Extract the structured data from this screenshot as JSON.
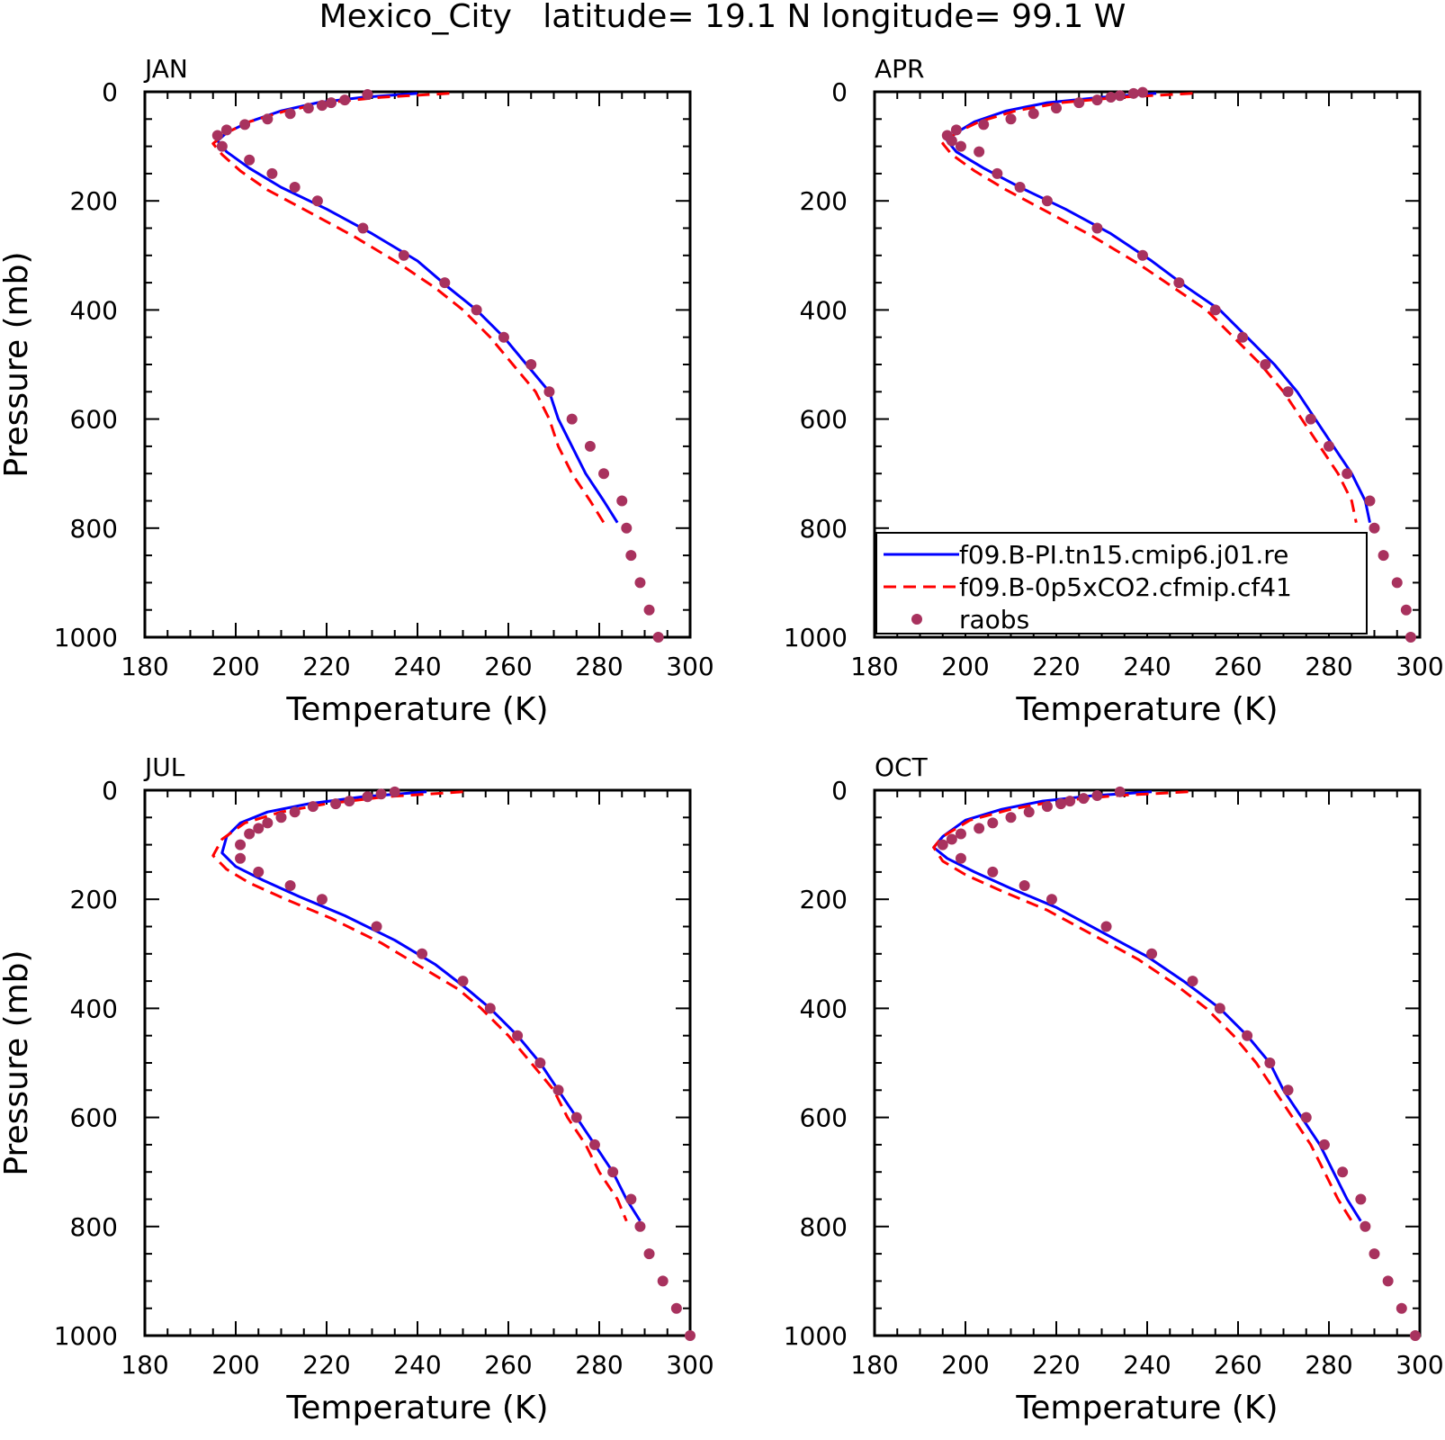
{
  "title": "Mexico_City   latitude= 19.1 N longitude= 99.1 W",
  "colors": {
    "model_a": "#0000ff",
    "model_b": "#ff0000",
    "raobs": "#a8325e",
    "axis": "#000000"
  },
  "legend": {
    "panel": "APR",
    "items": [
      {
        "label": "f09.B-PI.tn15.cmip6.j01.re",
        "style": "solid",
        "color": "#0000ff"
      },
      {
        "label": "f09.B-0p5xCO2.cfmip.cf41",
        "style": "dashed",
        "color": "#ff0000"
      },
      {
        "label": "raobs",
        "style": "dot",
        "color": "#a8325e"
      }
    ]
  },
  "chart_data": [
    {
      "type": "line",
      "panel": "JAN",
      "xlabel": "Temperature (K)",
      "ylabel": "Pressure (mb)",
      "xlim": [
        180,
        300
      ],
      "ylim": [
        1000,
        0
      ],
      "y_inverted": true,
      "xticks": [
        180,
        200,
        220,
        240,
        260,
        280,
        300
      ],
      "yticks": [
        0,
        200,
        400,
        600,
        800,
        1000
      ],
      "series": [
        {
          "name": "f09.B-PI.tn15.cmip6.j01.re",
          "style": "solid",
          "x": [
            240,
            228,
            218,
            210,
            203,
            198,
            196,
            198,
            203,
            210,
            220,
            230,
            240,
            247,
            253,
            259,
            264,
            269,
            271,
            274,
            277,
            281,
            284
          ],
          "y": [
            3,
            10,
            20,
            35,
            55,
            75,
            90,
            110,
            140,
            175,
            215,
            260,
            310,
            360,
            400,
            450,
            500,
            550,
            600,
            650,
            700,
            750,
            790
          ]
        },
        {
          "name": "f09.B-0p5xCO2.cfmip.cf41",
          "style": "dashed",
          "x": [
            247,
            232,
            220,
            211,
            203,
            198,
            195,
            197,
            201,
            207,
            216,
            226,
            236,
            244,
            250,
            256,
            261,
            266,
            269,
            271,
            274,
            278,
            281
          ],
          "y": [
            3,
            10,
            20,
            35,
            55,
            75,
            95,
            115,
            145,
            180,
            220,
            265,
            315,
            360,
            400,
            450,
            500,
            550,
            600,
            650,
            700,
            750,
            790
          ]
        },
        {
          "name": "raobs",
          "style": "dot",
          "x": [
            229,
            224,
            221,
            219,
            216,
            212,
            207,
            202,
            198,
            196,
            197,
            203,
            208,
            213,
            218,
            228,
            237,
            246,
            253,
            259,
            265,
            269,
            274,
            278,
            281,
            285,
            286,
            287,
            289,
            291,
            293
          ],
          "y": [
            5,
            15,
            20,
            25,
            30,
            40,
            50,
            60,
            70,
            80,
            100,
            125,
            150,
            175,
            200,
            250,
            300,
            350,
            400,
            450,
            500,
            550,
            600,
            650,
            700,
            750,
            800,
            850,
            900,
            950,
            1000
          ]
        }
      ]
    },
    {
      "type": "line",
      "panel": "APR",
      "xlabel": "Temperature (K)",
      "ylabel": "",
      "xlim": [
        180,
        300
      ],
      "ylim": [
        1000,
        0
      ],
      "y_inverted": true,
      "xticks": [
        180,
        200,
        220,
        240,
        260,
        280,
        300
      ],
      "yticks": [
        0,
        200,
        400,
        600,
        800,
        1000
      ],
      "series": [
        {
          "name": "f09.B-PI.tn15.cmip6.j01.re",
          "style": "solid",
          "x": [
            242,
            230,
            218,
            209,
            202,
            198,
            196,
            198,
            204,
            212,
            222,
            232,
            241,
            249,
            256,
            262,
            268,
            273,
            277,
            281,
            285,
            288,
            289
          ],
          "y": [
            3,
            10,
            20,
            35,
            55,
            75,
            90,
            110,
            140,
            175,
            215,
            260,
            310,
            360,
            400,
            450,
            500,
            550,
            600,
            650,
            700,
            750,
            790
          ]
        },
        {
          "name": "f09.B-0p5xCO2.cfmip.cf41",
          "style": "dashed",
          "x": [
            250,
            234,
            221,
            211,
            203,
            198,
            195,
            197,
            202,
            209,
            218,
            228,
            238,
            246,
            253,
            259,
            265,
            270,
            274,
            278,
            282,
            285,
            286
          ],
          "y": [
            3,
            10,
            20,
            35,
            55,
            75,
            95,
            115,
            145,
            180,
            220,
            265,
            315,
            360,
            400,
            450,
            500,
            550,
            600,
            650,
            700,
            750,
            790
          ]
        },
        {
          "name": "raobs",
          "style": "dot",
          "x": [
            239,
            237,
            234,
            232,
            229,
            225,
            220,
            215,
            210,
            204,
            198,
            196,
            197,
            199,
            203,
            207,
            212,
            218,
            229,
            239,
            247,
            255,
            261,
            266,
            271,
            276,
            280,
            284,
            289,
            290,
            292,
            295,
            297,
            298
          ],
          "y": [
            1,
            3,
            7,
            10,
            15,
            20,
            30,
            40,
            50,
            60,
            70,
            80,
            90,
            100,
            110,
            150,
            175,
            200,
            250,
            300,
            350,
            400,
            450,
            500,
            550,
            600,
            650,
            700,
            750,
            800,
            850,
            900,
            950,
            1000
          ]
        }
      ]
    },
    {
      "type": "line",
      "panel": "JUL",
      "xlabel": "Temperature (K)",
      "ylabel": "Pressure (mb)",
      "xlim": [
        180,
        300
      ],
      "ylim": [
        1000,
        0
      ],
      "y_inverted": true,
      "xticks": [
        180,
        200,
        220,
        240,
        260,
        280,
        300
      ],
      "yticks": [
        0,
        200,
        400,
        600,
        800,
        1000
      ],
      "series": [
        {
          "name": "f09.B-PI.tn15.cmip6.j01.re",
          "style": "solid",
          "x": [
            242,
            228,
            216,
            207,
            201,
            198,
            197,
            200,
            206,
            214,
            224,
            235,
            244,
            251,
            256,
            262,
            267,
            271,
            275,
            279,
            283,
            286,
            289
          ],
          "y": [
            3,
            12,
            25,
            40,
            60,
            85,
            115,
            140,
            165,
            195,
            230,
            275,
            320,
            365,
            400,
            450,
            500,
            550,
            600,
            650,
            700,
            750,
            790
          ]
        },
        {
          "name": "f09.B-0p5xCO2.cfmip.cf41",
          "style": "dashed",
          "x": [
            250,
            233,
            220,
            210,
            202,
            197,
            195,
            198,
            203,
            211,
            221,
            232,
            241,
            249,
            254,
            260,
            265,
            270,
            273,
            277,
            280,
            284,
            286
          ],
          "y": [
            3,
            12,
            25,
            40,
            60,
            90,
            120,
            145,
            170,
            200,
            235,
            280,
            325,
            365,
            400,
            450,
            500,
            550,
            600,
            650,
            700,
            750,
            790
          ]
        },
        {
          "name": "raobs",
          "style": "dot",
          "x": [
            235,
            232,
            229,
            225,
            222,
            217,
            213,
            210,
            207,
            205,
            203,
            201,
            201,
            205,
            212,
            219,
            231,
            241,
            250,
            256,
            262,
            267,
            271,
            275,
            279,
            283,
            287,
            289,
            291,
            294,
            297,
            300
          ],
          "y": [
            3,
            7,
            12,
            20,
            25,
            30,
            40,
            50,
            60,
            70,
            80,
            100,
            125,
            150,
            175,
            200,
            250,
            300,
            350,
            400,
            450,
            500,
            550,
            600,
            650,
            700,
            750,
            800,
            850,
            900,
            950,
            1000
          ]
        }
      ]
    },
    {
      "type": "line",
      "panel": "OCT",
      "xlabel": "Temperature (K)",
      "ylabel": "",
      "xlim": [
        180,
        300
      ],
      "ylim": [
        1000,
        0
      ],
      "y_inverted": true,
      "xticks": [
        180,
        200,
        220,
        240,
        260,
        280,
        300
      ],
      "yticks": [
        0,
        200,
        400,
        600,
        800,
        1000
      ],
      "series": [
        {
          "name": "f09.B-PI.tn15.cmip6.j01.re",
          "style": "solid",
          "x": [
            241,
            228,
            217,
            208,
            200,
            195,
            193,
            196,
            202,
            210,
            220,
            230,
            240,
            248,
            256,
            262,
            267,
            270,
            274,
            278,
            281,
            284,
            287
          ],
          "y": [
            3,
            10,
            20,
            35,
            55,
            85,
            105,
            125,
            150,
            180,
            215,
            260,
            305,
            350,
            400,
            450,
            500,
            550,
            600,
            650,
            700,
            750,
            790
          ]
        },
        {
          "name": "f09.B-0p5xCO2.cfmip.cf41",
          "style": "dashed",
          "x": [
            249,
            233,
            220,
            210,
            201,
            195,
            193,
            195,
            200,
            208,
            218,
            228,
            238,
            246,
            253,
            259,
            264,
            268,
            272,
            276,
            279,
            282,
            285
          ],
          "y": [
            3,
            10,
            20,
            35,
            55,
            85,
            105,
            130,
            155,
            185,
            220,
            265,
            310,
            355,
            400,
            450,
            500,
            550,
            600,
            650,
            700,
            750,
            790
          ]
        },
        {
          "name": "raobs",
          "style": "dot",
          "x": [
            234,
            229,
            226,
            223,
            221,
            218,
            214,
            210,
            206,
            203,
            199,
            197,
            195,
            199,
            206,
            213,
            219,
            231,
            241,
            250,
            256,
            262,
            267,
            271,
            275,
            279,
            283,
            287,
            288,
            290,
            293,
            296,
            299
          ],
          "y": [
            3,
            10,
            15,
            20,
            25,
            30,
            40,
            50,
            60,
            70,
            80,
            90,
            100,
            125,
            150,
            175,
            200,
            250,
            300,
            350,
            400,
            450,
            500,
            550,
            600,
            650,
            700,
            750,
            800,
            850,
            900,
            950,
            1000
          ]
        }
      ]
    }
  ]
}
